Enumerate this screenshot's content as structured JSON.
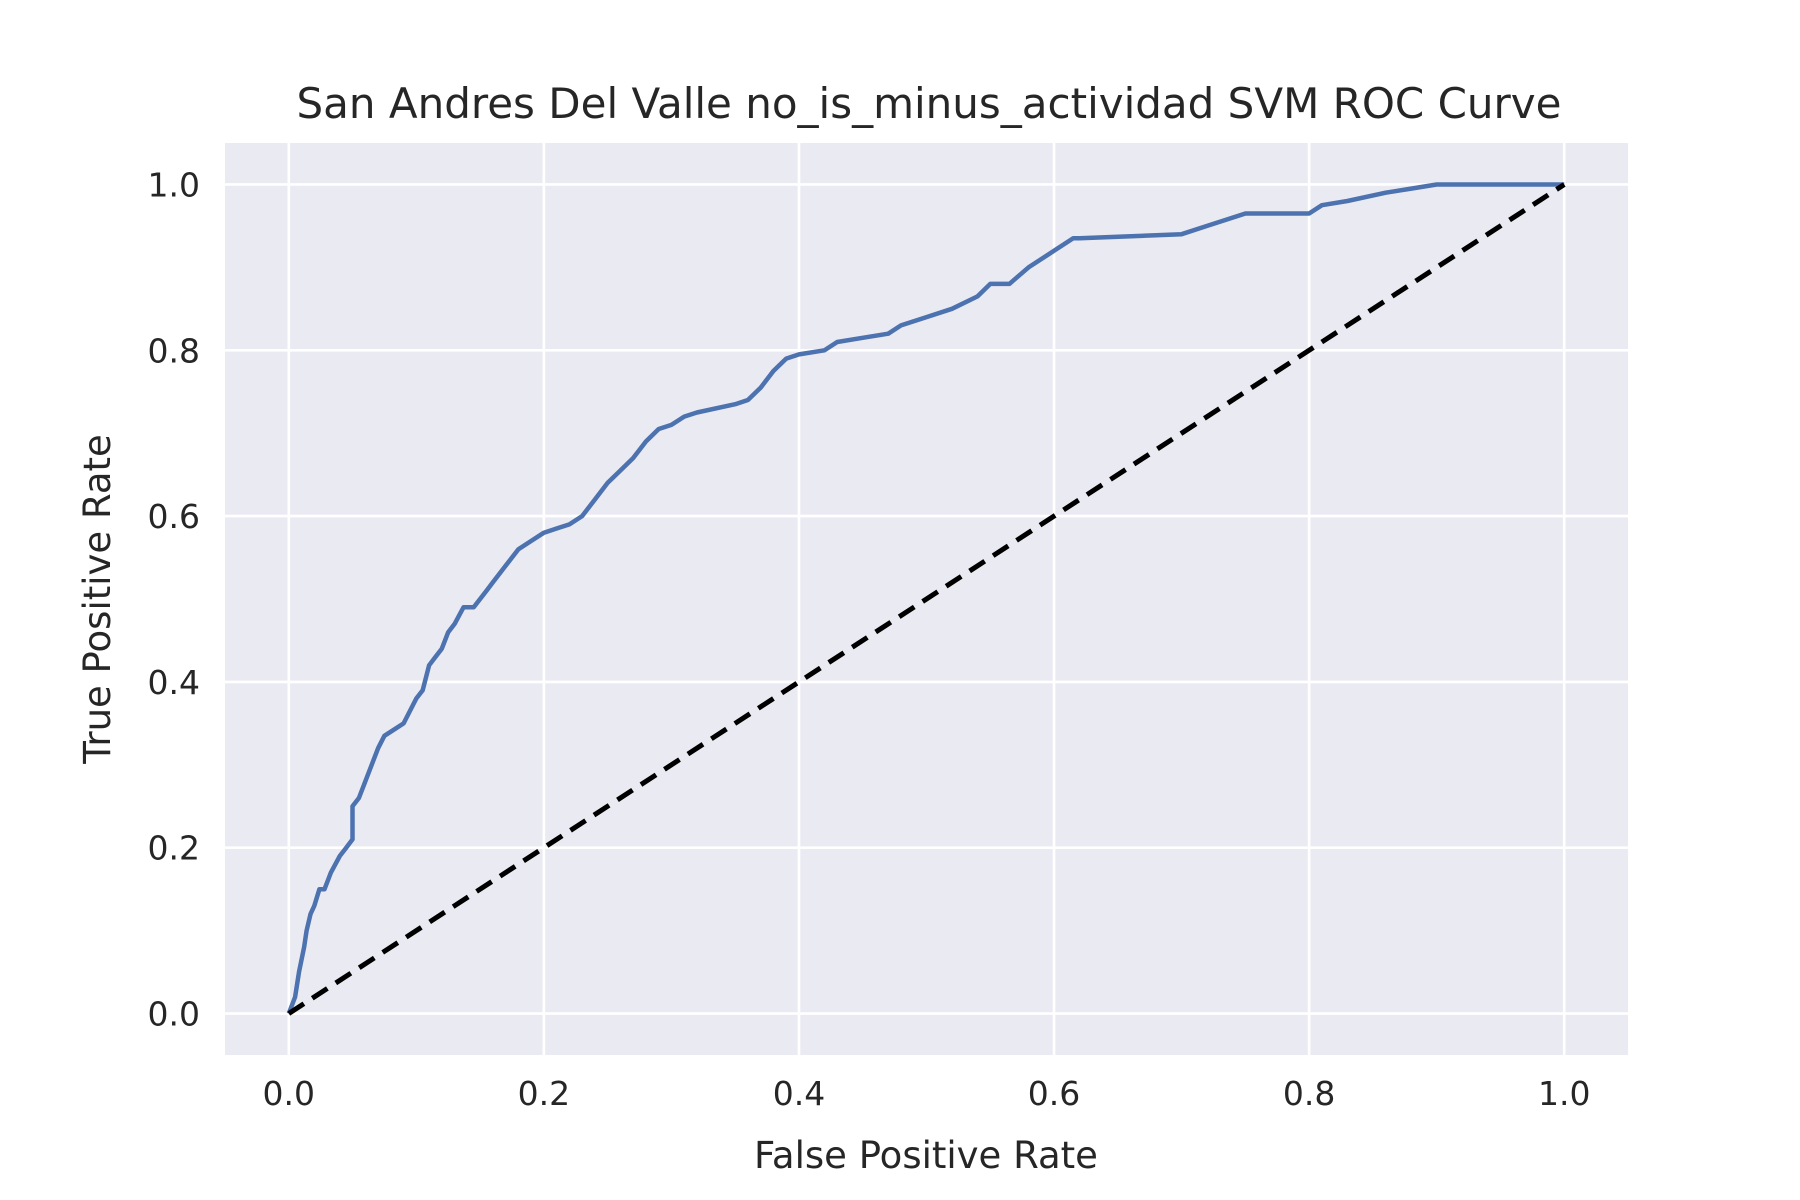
{
  "chart_data": {
    "type": "line",
    "title": "San Andres Del Valle no_is_minus_actividad SVM ROC Curve",
    "xlabel": "False Positive Rate",
    "ylabel": "True Positive Rate",
    "xlim": [
      -0.05,
      1.05
    ],
    "ylim": [
      -0.05,
      1.05
    ],
    "xticks": [
      "0.0",
      "0.2",
      "0.4",
      "0.6",
      "0.8",
      "1.0"
    ],
    "yticks": [
      "0.0",
      "0.2",
      "0.4",
      "0.6",
      "0.8",
      "1.0"
    ],
    "grid": true,
    "colors": {
      "plot_background": "#EAEAF2",
      "grid": "#FFFFFF",
      "roc": "#4C72B0",
      "diagonal": "#000000"
    },
    "series": [
      {
        "style": "solid",
        "x": [
          0.0,
          0.005,
          0.008,
          0.012,
          0.014,
          0.017,
          0.02,
          0.024,
          0.028,
          0.033,
          0.04,
          0.045,
          0.05,
          0.05,
          0.055,
          0.06,
          0.065,
          0.07,
          0.075,
          0.08,
          0.09,
          0.1,
          0.105,
          0.11,
          0.115,
          0.12,
          0.125,
          0.13,
          0.137,
          0.145,
          0.155,
          0.16,
          0.17,
          0.18,
          0.19,
          0.2,
          0.21,
          0.22,
          0.23,
          0.24,
          0.25,
          0.26,
          0.27,
          0.28,
          0.29,
          0.3,
          0.31,
          0.32,
          0.35,
          0.36,
          0.37,
          0.38,
          0.39,
          0.4,
          0.42,
          0.43,
          0.45,
          0.47,
          0.48,
          0.5,
          0.52,
          0.54,
          0.55,
          0.565,
          0.58,
          0.6,
          0.615,
          0.62,
          0.7,
          0.72,
          0.75,
          0.8,
          0.81,
          0.83,
          0.86,
          0.88,
          0.9,
          0.95,
          0.98,
          1.0
        ],
        "y": [
          0.0,
          0.02,
          0.05,
          0.08,
          0.1,
          0.12,
          0.13,
          0.15,
          0.15,
          0.17,
          0.19,
          0.2,
          0.21,
          0.25,
          0.26,
          0.28,
          0.3,
          0.32,
          0.335,
          0.34,
          0.35,
          0.38,
          0.39,
          0.42,
          0.43,
          0.44,
          0.46,
          0.47,
          0.49,
          0.49,
          0.51,
          0.52,
          0.54,
          0.56,
          0.57,
          0.58,
          0.585,
          0.59,
          0.6,
          0.62,
          0.64,
          0.655,
          0.67,
          0.69,
          0.705,
          0.71,
          0.72,
          0.725,
          0.735,
          0.74,
          0.755,
          0.775,
          0.79,
          0.795,
          0.8,
          0.81,
          0.815,
          0.82,
          0.83,
          0.84,
          0.85,
          0.865,
          0.88,
          0.88,
          0.9,
          0.92,
          0.935,
          0.935,
          0.94,
          0.95,
          0.965,
          0.965,
          0.975,
          0.98,
          0.99,
          0.995,
          1.0,
          1.0,
          1.0,
          1.0
        ]
      },
      {
        "style": "dashed",
        "x": [
          0.0,
          1.0
        ],
        "y": [
          0.0,
          1.0
        ]
      }
    ]
  }
}
